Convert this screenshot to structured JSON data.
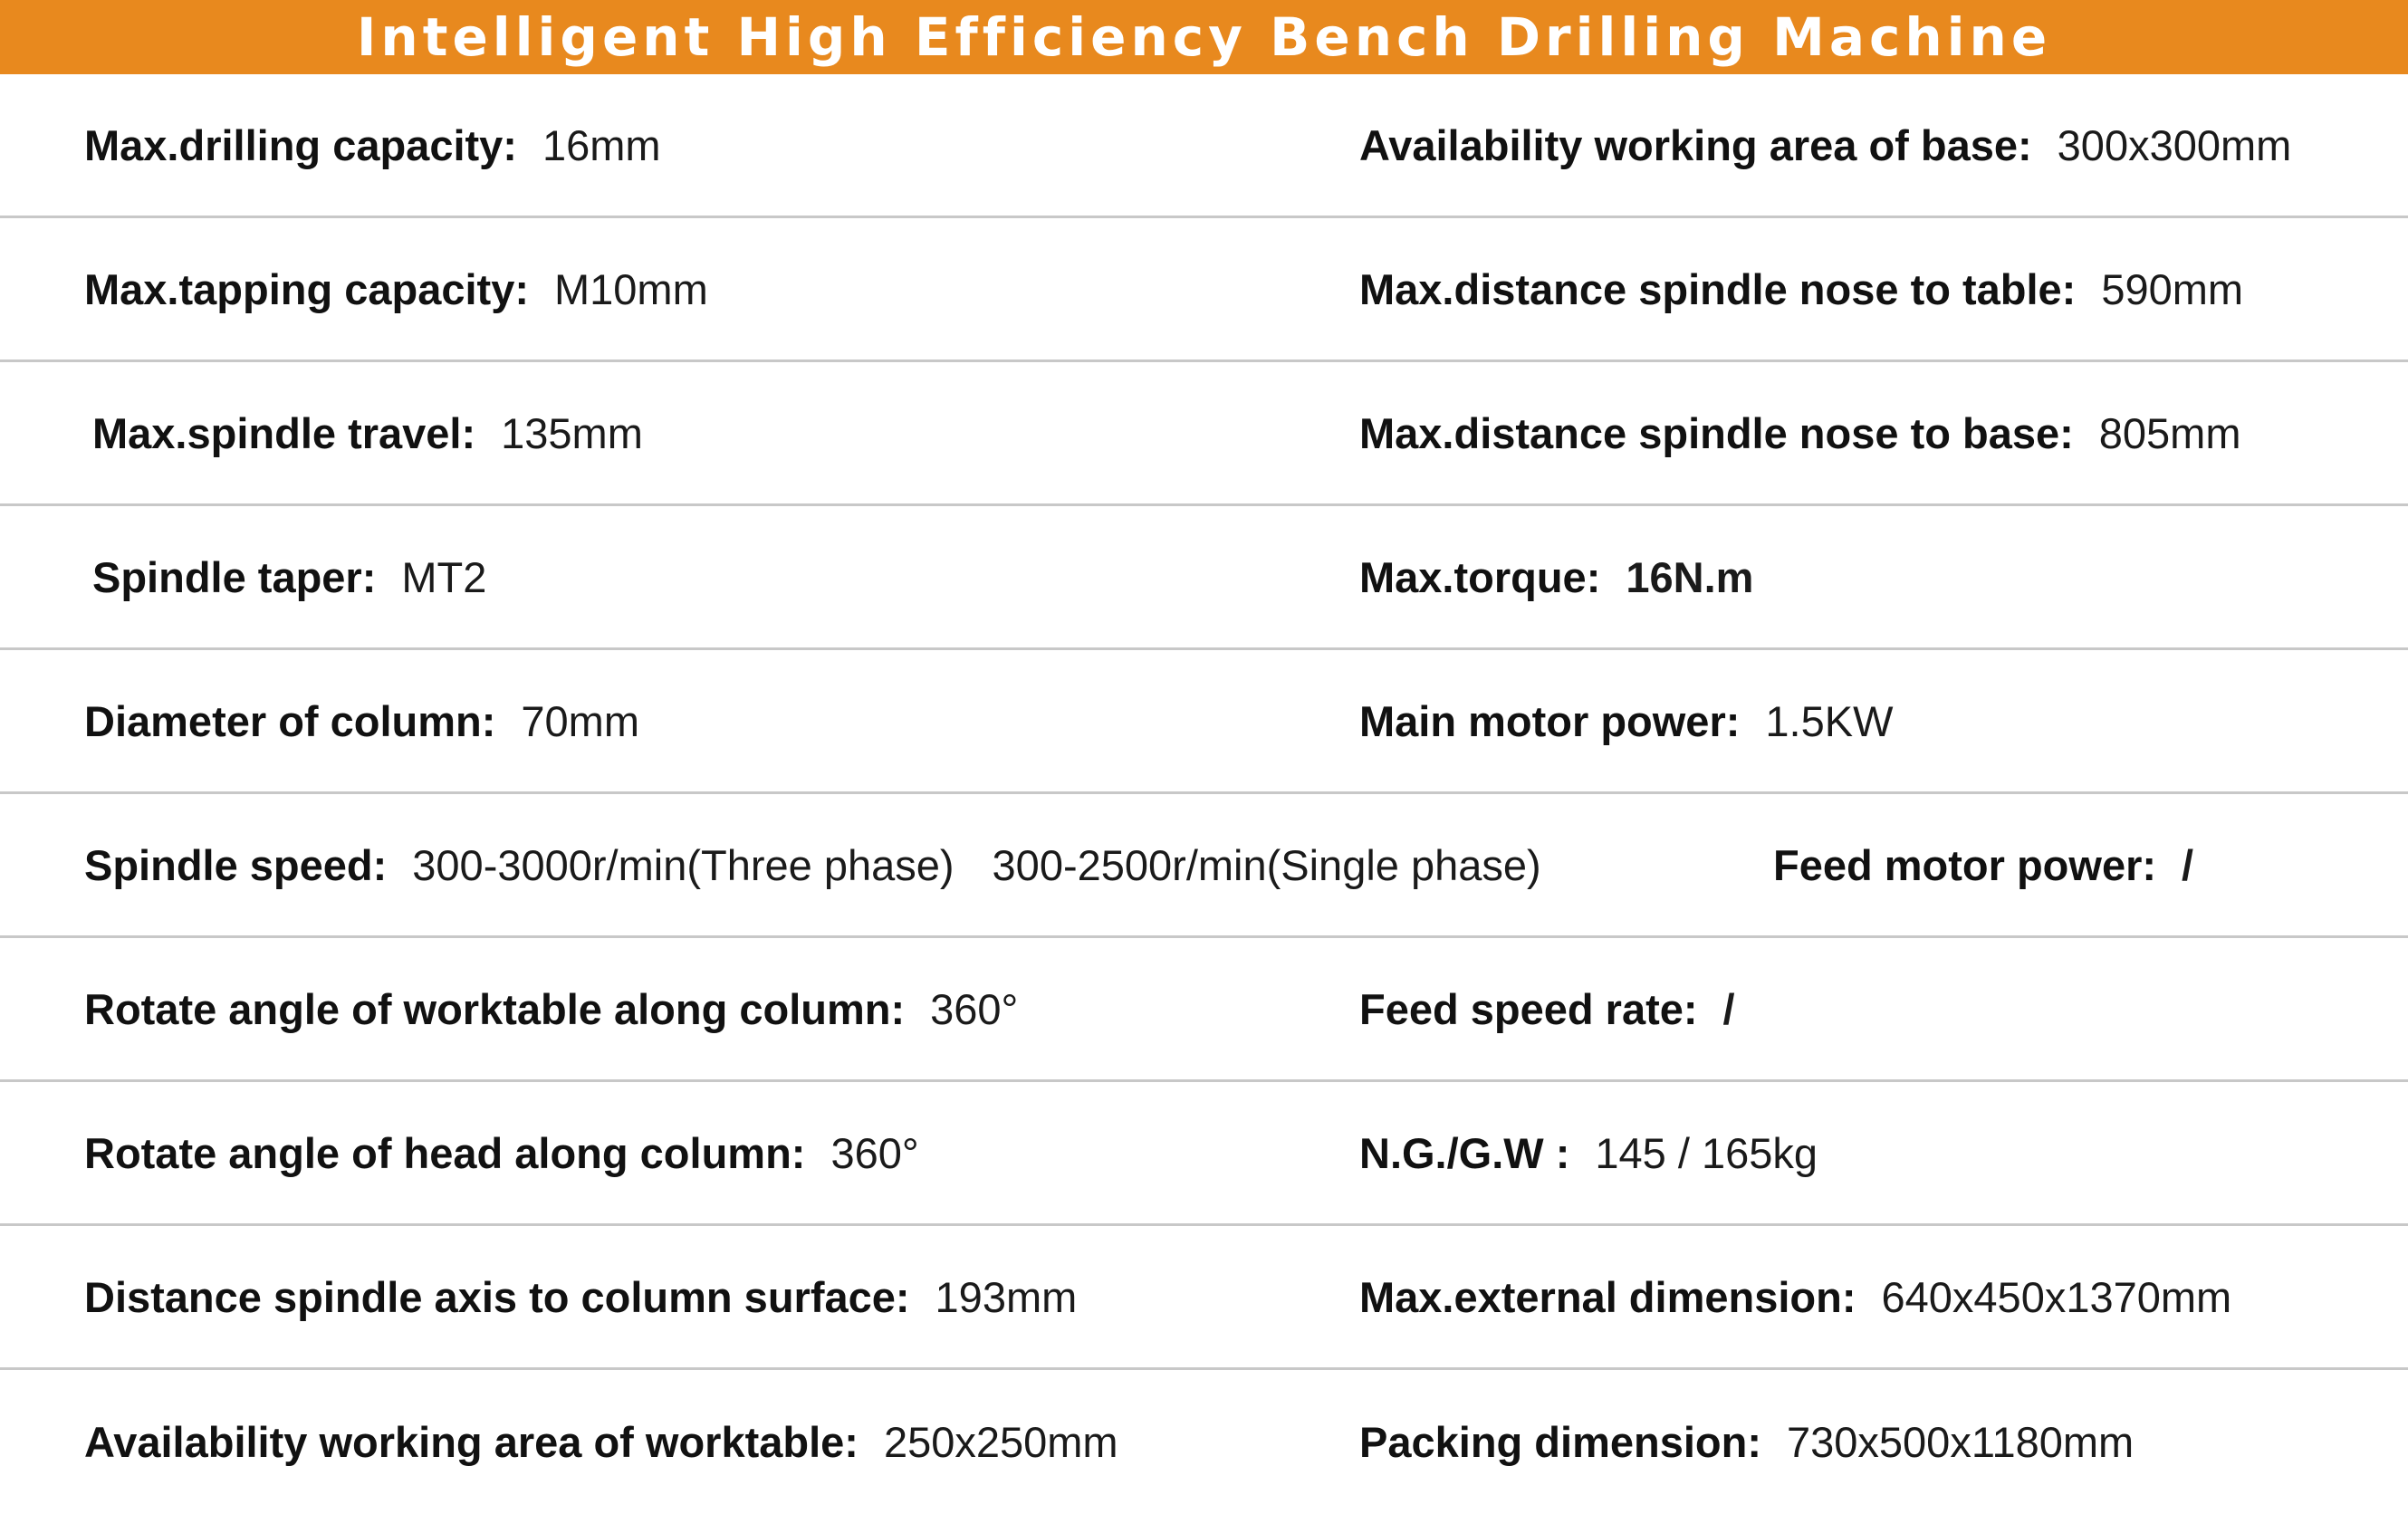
{
  "header": {
    "title": "Intelligent High Efficiency Bench Drilling Machine",
    "background_color": "#e8891e"
  },
  "rows": [
    {
      "left": {
        "label": "Max.drilling capacity:",
        "value": "16mm"
      },
      "right": {
        "label": "Availability working area of base:",
        "value": "300x300mm"
      }
    },
    {
      "left": {
        "label": "Max.tapping capacity:",
        "value": "M10mm"
      },
      "right": {
        "label": "Max.distance spindle nose to table:",
        "value": "590mm"
      }
    },
    {
      "left": {
        "label": "Max.spindle travel:",
        "value": "135mm"
      },
      "right": {
        "label": "Max.distance spindle nose to base:",
        "value": "805mm"
      }
    },
    {
      "left": {
        "label": "Spindle taper:",
        "value": "MT2"
      },
      "right": {
        "label": "Max.torque:",
        "value": "16N.m"
      }
    },
    {
      "left": {
        "label": "Diameter of column:",
        "value": "70mm"
      },
      "right": {
        "label": "Main motor power:",
        "value": "1.5KW"
      }
    },
    {
      "left": {
        "label": "Spindle speed:",
        "value": "300-3000r/min(Three phase)",
        "value_2": "300-2500r/min(Single phase)"
      },
      "right": {
        "label": "Feed motor power:",
        "value": "/"
      }
    },
    {
      "left": {
        "label": "Rotate angle of worktable along column:",
        "value": "360°"
      },
      "right": {
        "label": "Feed speed rate:",
        "value": "/"
      }
    },
    {
      "left": {
        "label": "Rotate angle of head along column:",
        "value": "360°"
      },
      "right": {
        "label": "N.G./G.W :",
        "value": "145 / 165kg"
      }
    },
    {
      "left": {
        "label": "Distance spindle axis to column surface:",
        "value": "193mm"
      },
      "right": {
        "label": "Max.external dimension:",
        "value": "640x450x1370mm"
      }
    },
    {
      "left": {
        "label": "Availability working area of worktable:",
        "value": "250x250mm"
      },
      "right": {
        "label": "Packing dimension:",
        "value": "730x500x1180mm"
      }
    }
  ]
}
